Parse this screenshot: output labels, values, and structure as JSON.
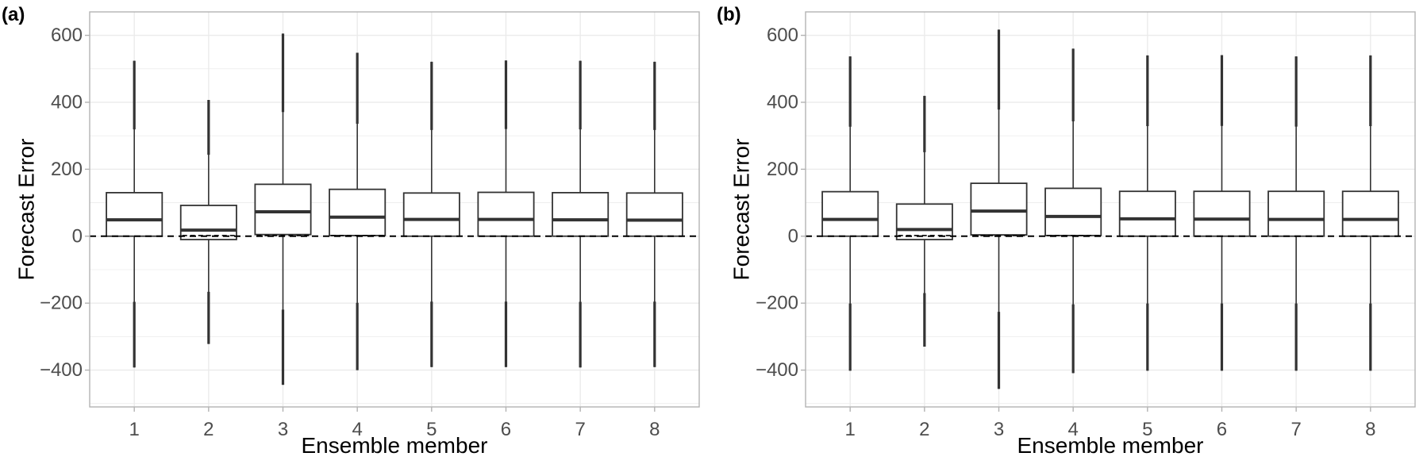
{
  "colors": {
    "grid": "#ebebeb",
    "panel_border": "#b3b3b3",
    "box_line": "#333333",
    "box_fill": "#ffffff",
    "reference_line": "#000000",
    "tick_text": "#4d4d4d"
  },
  "chart_data": [
    {
      "panel_label": "(a)",
      "type": "box",
      "xlabel": "Ensemble member",
      "ylabel": "Forecast Error",
      "categories": [
        "1",
        "2",
        "3",
        "4",
        "5",
        "6",
        "7",
        "8"
      ],
      "yticks": [
        -400,
        -200,
        0,
        200,
        400,
        600
      ],
      "ylim": [
        -510,
        670
      ],
      "grid": true,
      "reference_line": {
        "y": 0,
        "style": "dashed"
      },
      "boxes": [
        {
          "min": -392,
          "q1": 0,
          "median": 49,
          "q3": 130,
          "max": 524,
          "mean": 0
        },
        {
          "min": -322,
          "q1": -10,
          "median": 18,
          "q3": 92,
          "max": 407,
          "mean": 2
        },
        {
          "min": -444,
          "q1": 5,
          "median": 73,
          "q3": 155,
          "max": 605,
          "mean": 2
        },
        {
          "min": -400,
          "q1": 2,
          "median": 57,
          "q3": 140,
          "max": 548,
          "mean": 2
        },
        {
          "min": -391,
          "q1": 0,
          "median": 50,
          "q3": 129,
          "max": 521,
          "mean": 0
        },
        {
          "min": -391,
          "q1": 0,
          "median": 50,
          "q3": 131,
          "max": 525,
          "mean": 0
        },
        {
          "min": -392,
          "q1": 0,
          "median": 49,
          "q3": 130,
          "max": 524,
          "mean": 0
        },
        {
          "min": -391,
          "q1": 0,
          "median": 48,
          "q3": 129,
          "max": 521,
          "mean": 0
        }
      ]
    },
    {
      "panel_label": "(b)",
      "type": "box",
      "xlabel": "Ensemble member",
      "ylabel": "Forecast Error",
      "categories": [
        "1",
        "2",
        "3",
        "4",
        "5",
        "6",
        "7",
        "8"
      ],
      "yticks": [
        -400,
        -200,
        0,
        200,
        400,
        600
      ],
      "ylim": [
        -510,
        670
      ],
      "grid": true,
      "reference_line": {
        "y": 0,
        "style": "dashed"
      },
      "boxes": [
        {
          "min": -402,
          "q1": 0,
          "median": 50,
          "q3": 133,
          "max": 537,
          "mean": 0
        },
        {
          "min": -330,
          "q1": -10,
          "median": 20,
          "q3": 96,
          "max": 419,
          "mean": 2
        },
        {
          "min": -456,
          "q1": 4,
          "median": 75,
          "q3": 158,
          "max": 617,
          "mean": 2
        },
        {
          "min": -409,
          "q1": 2,
          "median": 59,
          "q3": 143,
          "max": 560,
          "mean": 2
        },
        {
          "min": -402,
          "q1": 0,
          "median": 52,
          "q3": 134,
          "max": 540,
          "mean": 0
        },
        {
          "min": -402,
          "q1": 0,
          "median": 51,
          "q3": 134,
          "max": 541,
          "mean": 0
        },
        {
          "min": -402,
          "q1": 0,
          "median": 50,
          "q3": 134,
          "max": 537,
          "mean": 0
        },
        {
          "min": -402,
          "q1": 0,
          "median": 50,
          "q3": 134,
          "max": 540,
          "mean": 0
        }
      ]
    }
  ]
}
